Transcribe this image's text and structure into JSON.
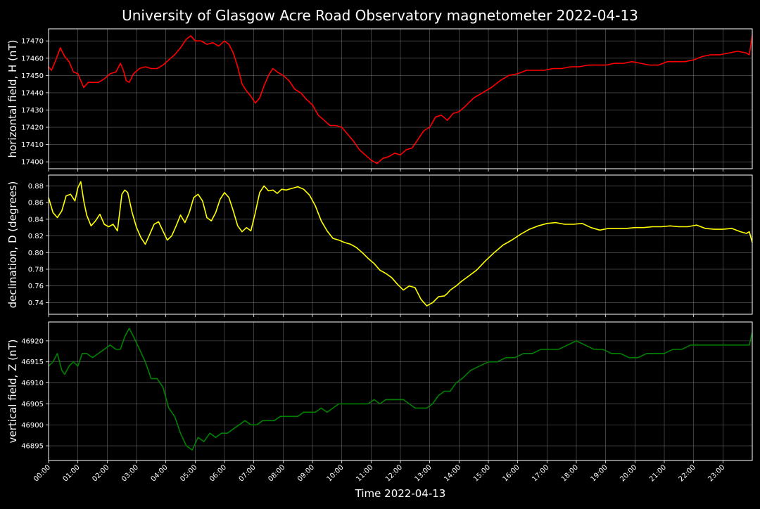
{
  "figure": {
    "title": "University of Glasgow Acre Road Observatory magnetometer 2022-04-13",
    "xlabel": "Time 2022-04-13",
    "background": "#000000",
    "text_color": "#ffffff",
    "grid_color": "#808080"
  },
  "chart_data": [
    {
      "type": "line",
      "ylabel": "horizontal field, H (nT)",
      "color": "#ff0000",
      "ylim": [
        17396,
        17477
      ],
      "yticks": [
        17400,
        17410,
        17420,
        17430,
        17440,
        17450,
        17460,
        17470
      ],
      "xlim": [
        0,
        24
      ],
      "grid": true,
      "series": [
        {
          "x": [
            0.0,
            0.1,
            0.25,
            0.4,
            0.55,
            0.7,
            0.85,
            1.0,
            1.1,
            1.2,
            1.35,
            1.5,
            1.7,
            1.9,
            2.1,
            2.3,
            2.45,
            2.55,
            2.65,
            2.75,
            2.9,
            3.1,
            3.3,
            3.5,
            3.7,
            3.9,
            4.1,
            4.3,
            4.5,
            4.7,
            4.85,
            5.0,
            5.2,
            5.4,
            5.6,
            5.8,
            6.0,
            6.15,
            6.3,
            6.45,
            6.6,
            6.75,
            6.9,
            7.05,
            7.2,
            7.35,
            7.5,
            7.65,
            7.8,
            8.0,
            8.2,
            8.4,
            8.6,
            8.8,
            9.0,
            9.2,
            9.4,
            9.6,
            9.8,
            10.0,
            10.2,
            10.4,
            10.6,
            10.8,
            11.0,
            11.2,
            11.4,
            11.6,
            11.8,
            12.0,
            12.2,
            12.4,
            12.6,
            12.8,
            13.0,
            13.2,
            13.4,
            13.6,
            13.8,
            14.0,
            14.2,
            14.5,
            14.8,
            15.1,
            15.4,
            15.7,
            16.0,
            16.3,
            16.6,
            16.9,
            17.2,
            17.5,
            17.8,
            18.1,
            18.4,
            18.7,
            19.0,
            19.3,
            19.6,
            19.9,
            20.2,
            20.5,
            20.8,
            21.1,
            21.4,
            21.7,
            22.0,
            22.3,
            22.6,
            22.9,
            23.2,
            23.5,
            23.8,
            23.9,
            24.0
          ],
          "y": [
            17455,
            17453,
            17459,
            17466,
            17461,
            17458,
            17452,
            17451,
            17447,
            17443,
            17446,
            17446,
            17446,
            17448,
            17451,
            17452,
            17457,
            17453,
            17447,
            17446,
            17451,
            17454,
            17455,
            17454,
            17454,
            17456,
            17459,
            17462,
            17466,
            17471,
            17473,
            17470,
            17470,
            17468,
            17469,
            17467,
            17470,
            17468,
            17463,
            17455,
            17445,
            17441,
            17438,
            17434,
            17437,
            17444,
            17450,
            17454,
            17452,
            17450,
            17447,
            17442,
            17440,
            17436,
            17433,
            17427,
            17424,
            17421,
            17421,
            17420,
            17416,
            17412,
            17407,
            17404,
            17401,
            17399,
            17402,
            17403,
            17405,
            17404,
            17407,
            17408,
            17413,
            17418,
            17420,
            17426,
            17427,
            17424,
            17428,
            17429,
            17432,
            17437,
            17440,
            17443,
            17447,
            17450,
            17451,
            17453,
            17453,
            17453,
            17454,
            17454,
            17455,
            17455,
            17456,
            17456,
            17456,
            17457,
            17457,
            17458,
            17457,
            17456,
            17456,
            17458,
            17458,
            17458,
            17459,
            17461,
            17462,
            17462,
            17463,
            17464,
            17463,
            17462,
            17473
          ]
        }
      ]
    },
    {
      "type": "line",
      "ylabel": "declination, D (degrees)",
      "color": "#ffff00",
      "ylim": [
        0.726,
        0.893
      ],
      "yticks": [
        0.74,
        0.76,
        0.78,
        0.8,
        0.82,
        0.84,
        0.86,
        0.88
      ],
      "xlim": [
        0,
        24
      ],
      "grid": true,
      "series": [
        {
          "x": [
            0.0,
            0.15,
            0.3,
            0.45,
            0.6,
            0.75,
            0.9,
            1.0,
            1.1,
            1.2,
            1.3,
            1.45,
            1.6,
            1.75,
            1.9,
            2.05,
            2.2,
            2.35,
            2.5,
            2.6,
            2.7,
            2.85,
            3.0,
            3.15,
            3.3,
            3.45,
            3.6,
            3.75,
            3.9,
            4.05,
            4.2,
            4.35,
            4.5,
            4.65,
            4.8,
            4.95,
            5.1,
            5.25,
            5.4,
            5.55,
            5.7,
            5.85,
            6.0,
            6.15,
            6.3,
            6.45,
            6.6,
            6.75,
            6.9,
            7.05,
            7.2,
            7.35,
            7.5,
            7.65,
            7.8,
            7.95,
            8.1,
            8.3,
            8.5,
            8.7,
            8.9,
            9.1,
            9.3,
            9.5,
            9.7,
            9.9,
            10.1,
            10.3,
            10.5,
            10.7,
            10.9,
            11.1,
            11.3,
            11.5,
            11.7,
            11.9,
            12.1,
            12.3,
            12.5,
            12.7,
            12.9,
            13.1,
            13.3,
            13.5,
            13.6,
            13.7,
            13.9,
            14.1,
            14.3,
            14.6,
            14.9,
            15.2,
            15.5,
            15.8,
            16.1,
            16.4,
            16.7,
            17.0,
            17.3,
            17.6,
            17.9,
            18.2,
            18.5,
            18.8,
            19.1,
            19.4,
            19.7,
            20.0,
            20.3,
            20.6,
            20.9,
            21.2,
            21.5,
            21.8,
            22.1,
            22.4,
            22.7,
            23.0,
            23.3,
            23.6,
            23.8,
            23.9,
            24.0
          ],
          "y": [
            0.866,
            0.848,
            0.842,
            0.85,
            0.868,
            0.87,
            0.862,
            0.878,
            0.885,
            0.862,
            0.845,
            0.832,
            0.838,
            0.846,
            0.834,
            0.831,
            0.834,
            0.826,
            0.87,
            0.875,
            0.872,
            0.848,
            0.83,
            0.818,
            0.81,
            0.822,
            0.834,
            0.837,
            0.826,
            0.815,
            0.82,
            0.832,
            0.845,
            0.836,
            0.848,
            0.866,
            0.87,
            0.862,
            0.842,
            0.838,
            0.848,
            0.864,
            0.872,
            0.866,
            0.85,
            0.832,
            0.825,
            0.83,
            0.826,
            0.848,
            0.872,
            0.88,
            0.874,
            0.875,
            0.871,
            0.876,
            0.875,
            0.877,
            0.879,
            0.876,
            0.869,
            0.856,
            0.838,
            0.826,
            0.817,
            0.815,
            0.812,
            0.81,
            0.806,
            0.8,
            0.793,
            0.787,
            0.779,
            0.775,
            0.77,
            0.762,
            0.755,
            0.76,
            0.758,
            0.744,
            0.736,
            0.74,
            0.747,
            0.748,
            0.751,
            0.755,
            0.76,
            0.766,
            0.771,
            0.779,
            0.79,
            0.8,
            0.809,
            0.815,
            0.822,
            0.828,
            0.832,
            0.835,
            0.836,
            0.834,
            0.834,
            0.835,
            0.83,
            0.827,
            0.829,
            0.829,
            0.829,
            0.83,
            0.83,
            0.831,
            0.831,
            0.832,
            0.831,
            0.831,
            0.833,
            0.829,
            0.828,
            0.828,
            0.829,
            0.825,
            0.823,
            0.825,
            0.812
          ],
          "_unused": null
        }
      ]
    },
    {
      "type": "line",
      "ylabel": "vertical field, Z (nT)",
      "color": "#008000",
      "ylim": [
        46891.5,
        46924.5
      ],
      "yticks": [
        46895,
        46900,
        46905,
        46910,
        46915,
        46920
      ],
      "xlim": [
        0,
        24
      ],
      "grid": true,
      "series": [
        {
          "x": [
            0.0,
            0.15,
            0.3,
            0.45,
            0.55,
            0.7,
            0.85,
            1.0,
            1.15,
            1.3,
            1.5,
            1.7,
            1.9,
            2.1,
            2.3,
            2.45,
            2.6,
            2.75,
            2.9,
            3.1,
            3.3,
            3.5,
            3.7,
            3.9,
            4.1,
            4.3,
            4.5,
            4.7,
            4.9,
            5.1,
            5.3,
            5.5,
            5.7,
            5.9,
            6.1,
            6.3,
            6.5,
            6.7,
            6.9,
            7.1,
            7.3,
            7.5,
            7.7,
            7.9,
            8.1,
            8.3,
            8.5,
            8.7,
            8.9,
            9.1,
            9.3,
            9.5,
            9.7,
            9.9,
            10.1,
            10.3,
            10.5,
            10.7,
            10.9,
            11.1,
            11.3,
            11.5,
            11.7,
            11.9,
            12.1,
            12.3,
            12.5,
            12.7,
            12.9,
            13.1,
            13.3,
            13.5,
            13.7,
            13.9,
            14.1,
            14.4,
            14.7,
            15.0,
            15.3,
            15.6,
            15.9,
            16.2,
            16.5,
            16.8,
            17.1,
            17.4,
            17.7,
            18.0,
            18.3,
            18.6,
            18.9,
            19.2,
            19.5,
            19.8,
            20.1,
            20.4,
            20.7,
            21.0,
            21.3,
            21.6,
            21.9,
            22.2,
            22.5,
            22.8,
            23.1,
            23.4,
            23.7,
            23.9,
            24.0
          ],
          "y": [
            46914,
            46915,
            46917,
            46913,
            46912,
            46914,
            46915,
            46914,
            46917,
            46917,
            46916,
            46917,
            46918,
            46919,
            46918,
            46918,
            46921,
            46923,
            46921,
            46918,
            46915,
            46911,
            46911,
            46909,
            46904,
            46902,
            46898,
            46895,
            46894,
            46897,
            46896,
            46898,
            46897,
            46898,
            46898,
            46899,
            46900,
            46901,
            46900,
            46900,
            46901,
            46901,
            46901,
            46902,
            46902,
            46902,
            46902,
            46903,
            46903,
            46903,
            46904,
            46903,
            46904,
            46905,
            46905,
            46905,
            46905,
            46905,
            46905,
            46906,
            46905,
            46906,
            46906,
            46906,
            46906,
            46905,
            46904,
            46904,
            46904,
            46905,
            46907,
            46908,
            46908,
            46910,
            46911,
            46913,
            46914,
            46915,
            46915,
            46916,
            46916,
            46917,
            46917,
            46918,
            46918,
            46918,
            46919,
            46920,
            46919,
            46918,
            46918,
            46917,
            46917,
            46916,
            46916,
            46917,
            46917,
            46917,
            46918,
            46918,
            46919,
            46919,
            46919,
            46919,
            46919,
            46919,
            46919,
            46919,
            46922
          ]
        }
      ]
    }
  ],
  "x_ticks": [
    "00:00",
    "01:00",
    "02:00",
    "03:00",
    "04:00",
    "05:00",
    "06:00",
    "07:00",
    "08:00",
    "09:00",
    "10:00",
    "11:00",
    "12:00",
    "13:00",
    "14:00",
    "15:00",
    "16:00",
    "17:00",
    "18:00",
    "19:00",
    "20:00",
    "21:00",
    "22:00",
    "23:00"
  ]
}
